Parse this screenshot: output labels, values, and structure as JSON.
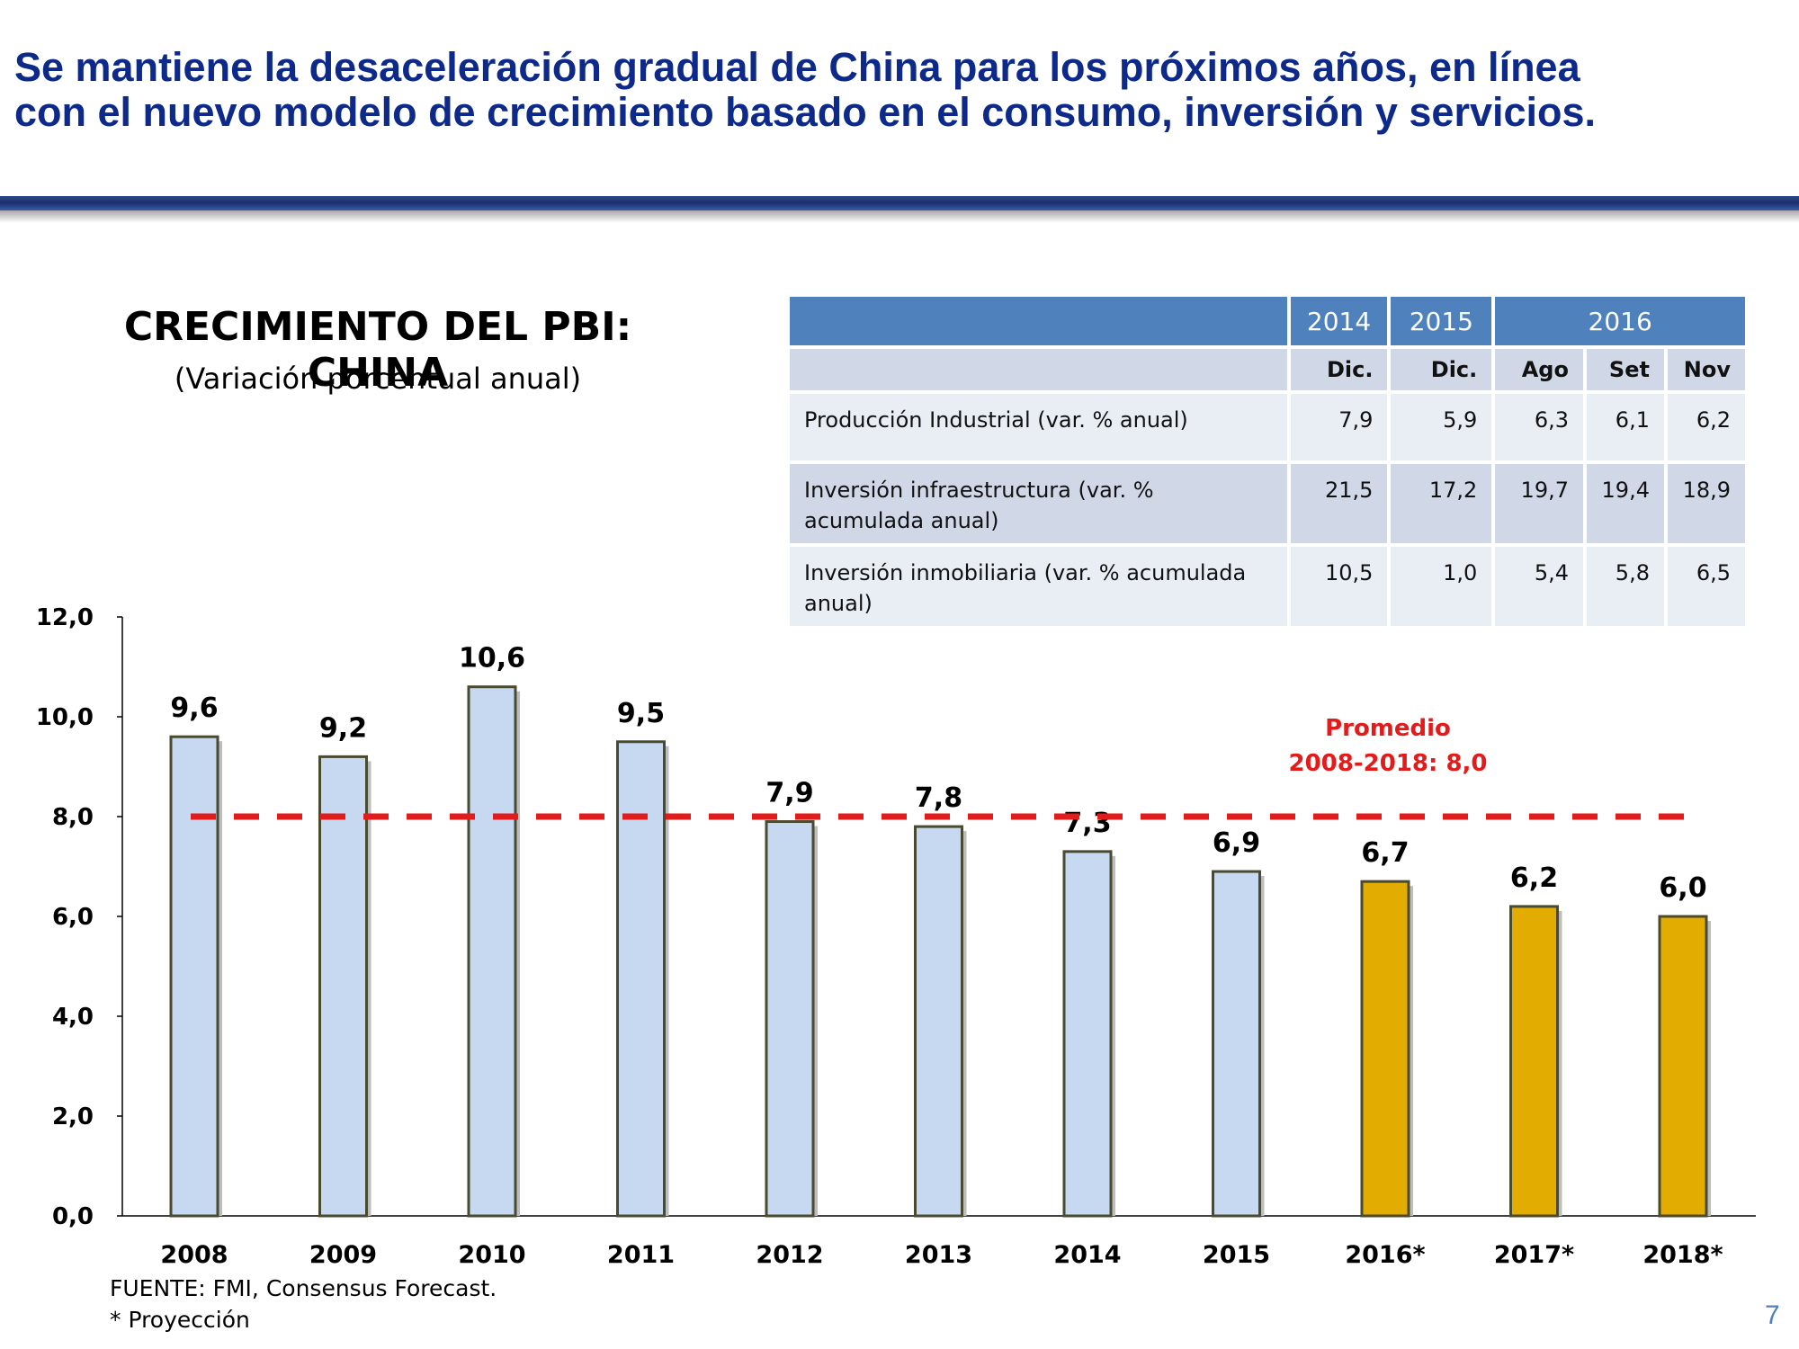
{
  "header": {
    "headline_line1": "Se mantiene la desaceleración gradual de China para los próximos años, en línea",
    "headline_line2": "con el nuevo modelo de crecimiento basado en el consumo, inversión y servicios."
  },
  "table": {
    "year_headers": [
      "2014",
      "2015",
      "2016"
    ],
    "month_headers": [
      "Dic.",
      "Dic.",
      "Ago",
      "Set",
      "Nov"
    ],
    "rows": [
      {
        "label": "Producción Industrial (var. % anual)",
        "values": [
          "7,9",
          "5,9",
          "6,3",
          "6,1",
          "6,2"
        ]
      },
      {
        "label": "Inversión infraestructura (var. % acumulada anual)",
        "values": [
          "21,5",
          "17,2",
          "19,7",
          "19,4",
          "18,9"
        ]
      },
      {
        "label": "Inversión inmobiliaria (var. % acumulada anual)",
        "values": [
          "10,5",
          "1,0",
          "5,4",
          "5,8",
          "6,5"
        ]
      }
    ]
  },
  "chart_data": {
    "type": "bar",
    "title": "CRECIMIENTO DEL PBI: CHINA",
    "subtitle": "(Variación porcentual anual)",
    "categories": [
      "2008",
      "2009",
      "2010",
      "2011",
      "2012",
      "2013",
      "2014",
      "2015",
      "2016*",
      "2017*",
      "2018*"
    ],
    "values": [
      9.6,
      9.2,
      10.6,
      9.5,
      7.9,
      7.8,
      7.3,
      6.9,
      6.7,
      6.2,
      6.0
    ],
    "value_labels": [
      "9,6",
      "9,2",
      "10,6",
      "9,5",
      "7,9",
      "7,8",
      "7,3",
      "6,9",
      "6,7",
      "6,2",
      "6,0"
    ],
    "projected": [
      false,
      false,
      false,
      false,
      false,
      false,
      false,
      false,
      true,
      true,
      true
    ],
    "ylim": [
      0,
      12
    ],
    "yticks": [
      0,
      2,
      4,
      6,
      8,
      10,
      12
    ],
    "ytick_labels": [
      "0,0",
      "2,0",
      "4,0",
      "6,0",
      "8,0",
      "10,0",
      "12,0"
    ],
    "grid": false,
    "average": {
      "value": 8.0,
      "label_line1": "Promedio",
      "label_line2": "2008-2018: 8,0"
    },
    "colors": {
      "actual": "#c6d9f1",
      "projected": "#e3ac00",
      "average": "#e31b1b",
      "bar_border": "#4a4a30"
    }
  },
  "footer": {
    "source": "FUENTE: FMI, Consensus Forecast.",
    "note": "* Proyección",
    "page_number": "7"
  }
}
